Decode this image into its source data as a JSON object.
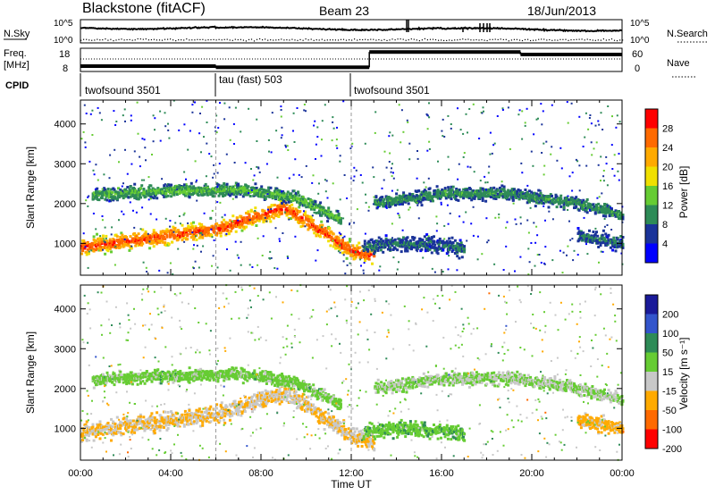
{
  "header": {
    "title": "Blackstone (fitACF)",
    "beam": "Beam 23",
    "date": "18/Jun/2013"
  },
  "strip": {
    "nsky_label": "N.Sky",
    "nsearch_label": "N.Search",
    "freq_label_1": "Freq.",
    "freq_label_2": "[MHz]",
    "nave_label": "Nave",
    "cpid_label": "CPID",
    "left_ticks_top": [
      "10^5",
      "10^0"
    ],
    "right_ticks_top": [
      "10^5",
      "10^0"
    ],
    "left_ticks_freq": [
      "18",
      "8"
    ],
    "right_ticks_nave": [
      "60",
      "0"
    ]
  },
  "cpid_segments": [
    {
      "label": "twofsound 3501",
      "start_hour": 0
    },
    {
      "label": "tau (fast) 503",
      "start_hour": 6
    },
    {
      "label": "twofsound 3501",
      "start_hour": 12
    }
  ],
  "colorbars": {
    "power": {
      "title": "Power [dB]",
      "ticks": [
        "28",
        "24",
        "20",
        "16",
        "12",
        "8",
        "4"
      ],
      "colors": [
        "#ff0000",
        "#ff6a00",
        "#ffaa00",
        "#f0e000",
        "#66cc33",
        "#2e8b57",
        "#1a3399",
        "#0000ff"
      ]
    },
    "velocity": {
      "title": "Velocity [m s⁻¹]",
      "ticks": [
        "200",
        "100",
        "50",
        "15",
        "-15",
        "-50",
        "-100",
        "-200"
      ],
      "colors": [
        "#1a1a99",
        "#3355cc",
        "#2e8b57",
        "#66cc33",
        "#c8c8c8",
        "#ffaa00",
        "#ff6a00",
        "#ff0000"
      ]
    }
  },
  "chart_data": [
    {
      "type": "heatmap",
      "panel": "power",
      "ylabel": "Slant Range [km]",
      "yticks": [
        "4000",
        "3000",
        "2000",
        "1000"
      ],
      "ylim": [
        200,
        4600
      ],
      "xlim": [
        0,
        24
      ],
      "zlabel": "Power [dB]",
      "zlim": [
        0,
        32
      ],
      "bands": [
        {
          "hours": [
            0,
            6,
            9,
            12,
            13
          ],
          "ranges": [
            900,
            1350,
            1900,
            800,
            650
          ],
          "width": 350,
          "power": 26
        },
        {
          "hours": [
            0.5,
            3,
            7,
            9.5,
            11.5
          ],
          "ranges": [
            2200,
            2300,
            2350,
            2150,
            1600
          ],
          "width": 250,
          "power": 12
        },
        {
          "hours": [
            13,
            16,
            19,
            22,
            24
          ],
          "ranges": [
            2000,
            2250,
            2250,
            2000,
            1700
          ],
          "width": 250,
          "power": 10
        },
        {
          "hours": [
            12.5,
            14,
            16,
            17
          ],
          "ranges": [
            900,
            1000,
            950,
            850
          ],
          "width": 300,
          "power": 8
        },
        {
          "hours": [
            22,
            24
          ],
          "ranges": [
            1200,
            1000
          ],
          "width": 300,
          "power": 8
        }
      ]
    },
    {
      "type": "heatmap",
      "panel": "velocity",
      "ylabel": "Slant Range [km]",
      "yticks": [
        "4000",
        "3000",
        "2000",
        "1000"
      ],
      "ylim": [
        200,
        4600
      ],
      "xlim": [
        0,
        24
      ],
      "xticks": [
        "00:00",
        "04:00",
        "08:00",
        "12:00",
        "16:00",
        "20:00",
        "00:00"
      ],
      "xlabel": "Time UT",
      "zlabel": "Velocity [m s⁻¹]",
      "zlim": [
        -250,
        250
      ],
      "bands": [
        {
          "hours": [
            0,
            6,
            9,
            12,
            13
          ],
          "ranges": [
            900,
            1350,
            1900,
            800,
            650
          ],
          "width": 350,
          "velocity": -60
        },
        {
          "hours": [
            0.5,
            3,
            7,
            9.5,
            11.5
          ],
          "ranges": [
            2200,
            2300,
            2350,
            2150,
            1600
          ],
          "width": 250,
          "velocity": 20
        },
        {
          "hours": [
            13,
            16,
            19,
            22,
            24
          ],
          "ranges": [
            2000,
            2250,
            2250,
            2000,
            1700
          ],
          "width": 250,
          "velocity": 0
        },
        {
          "hours": [
            12.5,
            14,
            16,
            17
          ],
          "ranges": [
            900,
            1000,
            950,
            850
          ],
          "width": 300,
          "velocity": 40
        },
        {
          "hours": [
            22,
            24
          ],
          "ranges": [
            1200,
            1000
          ],
          "width": 300,
          "velocity": -80
        }
      ]
    },
    {
      "type": "line",
      "panel": "frequency",
      "ylabel": "Freq. [MHz]",
      "ylim": [
        8,
        18
      ],
      "segments": [
        {
          "start_hour": 0,
          "end_hour": 6,
          "freq": 10.3
        },
        {
          "start_hour": 6,
          "end_hour": 12.8,
          "freq": 9.8
        },
        {
          "start_hour": 12.8,
          "end_hour": 19.5,
          "freq": 16.4
        },
        {
          "start_hour": 19.5,
          "end_hour": 24,
          "freq": 15.3
        }
      ]
    }
  ]
}
